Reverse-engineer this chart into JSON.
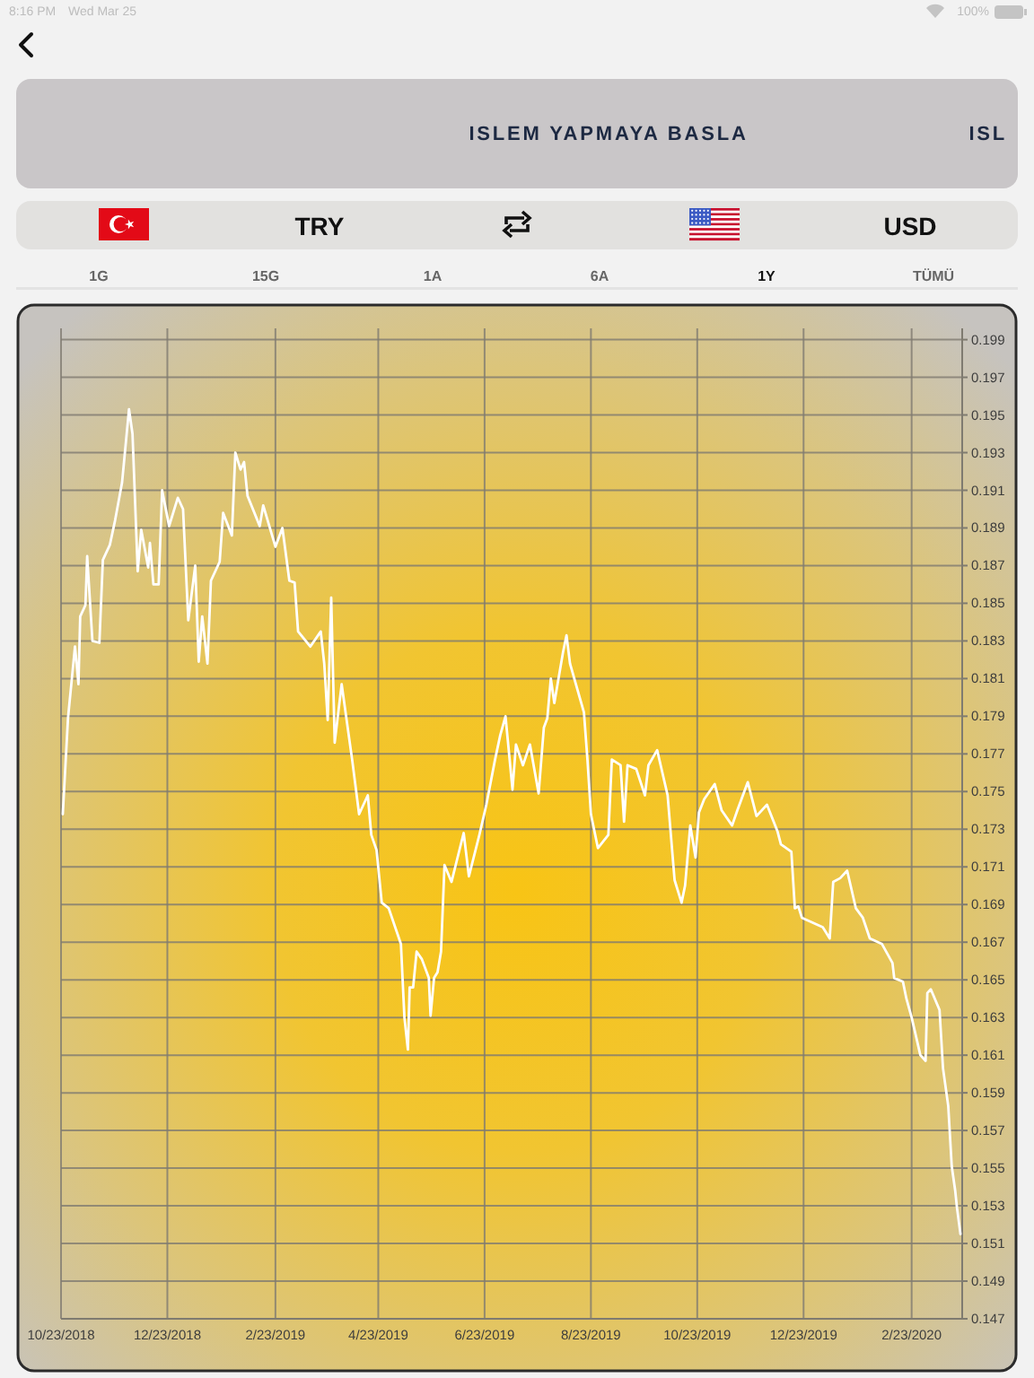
{
  "chart_data": {
    "type": "line",
    "annotations": [
      "8:16 PM",
      "Wed Mar 25",
      "100%",
      "ISLEM YAPMAYA BASLA",
      "ISL",
      "TRY",
      "USD",
      "1G",
      "15G",
      "1A",
      "6A",
      "1Y",
      "TÜMÜ"
    ],
    "x": [
      "2018-10-24",
      "2018-10-27",
      "2018-10-31",
      "2018-11-02",
      "2018-11-03",
      "2018-11-06",
      "2018-11-07",
      "2018-11-10",
      "2018-11-14",
      "2018-11-16",
      "2018-11-20",
      "2018-11-23",
      "2018-11-27",
      "2018-12-01",
      "2018-12-03",
      "2018-12-06",
      "2018-12-08",
      "2018-12-12",
      "2018-12-13",
      "2018-12-15",
      "2018-12-18",
      "2018-12-20",
      "2018-12-24",
      "2018-12-29",
      "2019-01-01",
      "2019-01-04",
      "2019-01-08",
      "2019-01-10",
      "2019-01-12",
      "2019-01-15",
      "2019-01-17",
      "2019-01-22",
      "2019-01-24",
      "2019-01-29",
      "2019-01-31",
      "2019-02-03",
      "2019-02-05",
      "2019-02-07",
      "2019-02-14",
      "2019-02-16",
      "2019-02-23",
      "2019-02-27",
      "2019-03-03",
      "2019-03-06",
      "2019-03-08",
      "2019-03-15",
      "2019-03-21",
      "2019-03-23",
      "2019-03-25",
      "2019-03-27",
      "2019-03-29",
      "2019-04-02",
      "2019-04-08",
      "2019-04-12",
      "2019-04-17",
      "2019-04-19",
      "2019-04-22",
      "2019-04-25",
      "2019-04-29",
      "2019-05-06",
      "2019-05-08",
      "2019-05-10",
      "2019-05-11",
      "2019-05-13",
      "2019-05-15",
      "2019-05-18",
      "2019-05-22",
      "2019-05-23",
      "2019-05-25",
      "2019-05-27",
      "2019-05-29",
      "2019-05-31",
      "2019-06-04",
      "2019-06-11",
      "2019-06-14",
      "2019-06-20",
      "2019-06-24",
      "2019-06-29",
      "2019-07-02",
      "2019-07-05",
      "2019-07-09",
      "2019-07-11",
      "2019-07-15",
      "2019-07-19",
      "2019-07-24",
      "2019-07-27",
      "2019-07-29",
      "2019-07-31",
      "2019-08-02",
      "2019-08-07",
      "2019-08-09",
      "2019-08-11",
      "2019-08-19",
      "2019-08-21",
      "2019-08-23",
      "2019-08-27",
      "2019-09-02",
      "2019-09-04",
      "2019-09-09",
      "2019-09-11",
      "2019-09-13",
      "2019-09-18",
      "2019-09-23",
      "2019-09-25",
      "2019-09-30",
      "2019-10-06",
      "2019-10-10",
      "2019-10-14",
      "2019-10-16",
      "2019-10-19",
      "2019-10-22",
      "2019-10-24",
      "2019-10-27",
      "2019-11-02",
      "2019-11-06",
      "2019-11-12",
      "2019-11-15",
      "2019-11-21",
      "2019-11-26",
      "2019-12-02",
      "2019-12-08",
      "2019-12-10",
      "2019-12-16",
      "2019-12-18",
      "2019-12-20",
      "2019-12-22",
      "2020-01-03",
      "2020-01-07",
      "2020-01-09",
      "2020-01-13",
      "2020-01-17",
      "2020-01-19",
      "2020-01-22",
      "2020-01-26",
      "2020-01-30",
      "2020-02-06",
      "2020-02-12",
      "2020-02-13",
      "2020-02-18",
      "2020-02-20",
      "2020-02-23",
      "2020-02-28",
      "2020-03-02",
      "2020-03-03",
      "2020-03-05",
      "2020-03-10",
      "2020-03-12",
      "2020-03-15",
      "2020-03-17",
      "2020-03-19",
      "2020-03-20",
      "2020-03-22"
    ],
    "series": [
      {
        "color": "#ffffff",
        "values": [
          0.1738,
          0.1789,
          0.1827,
          0.1807,
          0.1843,
          0.1849,
          0.1875,
          0.183,
          0.1829,
          0.1873,
          0.1881,
          0.1894,
          0.1914,
          0.1953,
          0.194,
          0.1867,
          0.1889,
          0.1869,
          0.1882,
          0.186,
          0.186,
          0.191,
          0.1891,
          0.1906,
          0.19,
          0.1841,
          0.187,
          0.1819,
          0.1843,
          0.1818,
          0.1862,
          0.1872,
          0.1898,
          0.1886,
          0.193,
          0.1921,
          0.1925,
          0.1907,
          0.1891,
          0.1902,
          0.188,
          0.189,
          0.1862,
          0.1861,
          0.1835,
          0.1827,
          0.1835,
          0.1818,
          0.1788,
          0.1853,
          0.1776,
          0.1807,
          0.1767,
          0.1738,
          0.1748,
          0.1727,
          0.1719,
          0.1691,
          0.1688,
          0.1669,
          0.163,
          0.1613,
          0.1646,
          0.1646,
          0.1665,
          0.1661,
          0.1651,
          0.1631,
          0.1651,
          0.1654,
          0.1665,
          0.1711,
          0.1702,
          0.1728,
          0.1705,
          0.1727,
          0.1743,
          0.1767,
          0.178,
          0.179,
          0.1751,
          0.1775,
          0.1764,
          0.1775,
          0.1749,
          0.1784,
          0.1789,
          0.181,
          0.1797,
          0.1824,
          0.1833,
          0.1818,
          0.1792,
          0.1767,
          0.1738,
          0.172,
          0.1727,
          0.1767,
          0.1764,
          0.1734,
          0.1764,
          0.1762,
          0.1748,
          0.1764,
          0.1772,
          0.1748,
          0.1703,
          0.1691,
          0.17,
          0.1732,
          0.1715,
          0.1739,
          0.1746,
          0.1754,
          0.174,
          0.1732,
          0.174,
          0.1755,
          0.1737,
          0.1743,
          0.1729,
          0.1722,
          0.1718,
          0.1688,
          0.1689,
          0.1683,
          0.1678,
          0.1672,
          0.1702,
          0.1704,
          0.1708,
          0.17,
          0.1688,
          0.1683,
          0.1672,
          0.1669,
          0.1659,
          0.1651,
          0.1649,
          0.164,
          0.163,
          0.161,
          0.1607,
          0.1643,
          0.1645,
          0.1634,
          0.1603,
          0.1583,
          0.1551,
          0.1538,
          0.1529,
          0.1515
        ]
      }
    ],
    "xlim": [
      "2018-10-23",
      "2020-03-23"
    ],
    "xticks": [
      {
        "value": "2018-10-23",
        "label": "10/23/2018"
      },
      {
        "value": "2018-12-23",
        "label": "12/23/2018"
      },
      {
        "value": "2019-02-23",
        "label": "2/23/2019"
      },
      {
        "value": "2019-04-23",
        "label": "4/23/2019"
      },
      {
        "value": "2019-06-23",
        "label": "6/23/2019"
      },
      {
        "value": "2019-08-23",
        "label": "8/23/2019"
      },
      {
        "value": "2019-10-23",
        "label": "10/23/2019"
      },
      {
        "value": "2019-12-23",
        "label": "12/23/2019"
      },
      {
        "value": "2020-02-23",
        "label": "2/23/2020"
      }
    ],
    "ylim": [
      0.147,
      0.1996
    ],
    "yticks": [
      0.147,
      0.149,
      0.151,
      0.153,
      0.155,
      0.157,
      0.159,
      0.161,
      0.163,
      0.165,
      0.167,
      0.169,
      0.171,
      0.173,
      0.175,
      0.177,
      0.179,
      0.181,
      0.183,
      0.185,
      0.187,
      0.189,
      0.191,
      0.193,
      0.195,
      0.197,
      0.199
    ],
    "grid": true
  }
}
